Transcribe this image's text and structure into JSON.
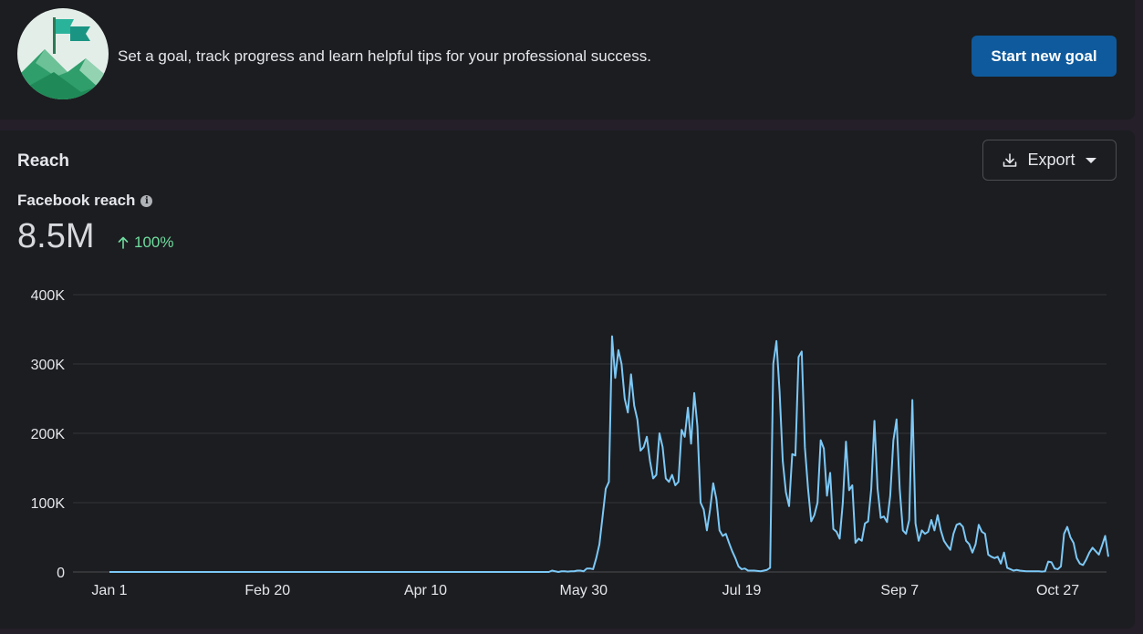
{
  "goal_banner": {
    "message": "Set a goal, track progress and learn helpful tips for your professional success.",
    "button_label": "Start new goal",
    "illustration_icon": "mountain-flag-icon"
  },
  "reach": {
    "section_title": "Reach",
    "export_label": "Export",
    "metric_label": "Facebook reach",
    "metric_value": "8.5M",
    "metric_change": "100%"
  },
  "colors": {
    "line": "#7cc8f6",
    "button_primary": "#0f5a9c",
    "positive": "#6fdc9f"
  },
  "chart_data": {
    "type": "line",
    "title": "",
    "xlabel": "",
    "ylabel": "",
    "x_tick_labels": [
      "Jan 1",
      "Feb 20",
      "Apr 10",
      "May 30",
      "Jul 19",
      "Sep 7",
      "Oct 27"
    ],
    "x_range": [
      "Jan 1",
      "Nov 13"
    ],
    "y_tick_labels": [
      "0",
      "100K",
      "200K",
      "300K",
      "400K"
    ],
    "y_ticks": [
      0,
      100000,
      200000,
      300000,
      400000
    ],
    "ylim": [
      0,
      400000
    ],
    "grid": true,
    "series": [
      {
        "values": [
          0,
          0,
          0,
          0,
          0,
          0,
          0,
          0,
          0,
          0,
          0,
          0,
          0,
          0,
          0,
          0,
          0,
          0,
          0,
          0,
          0,
          0,
          0,
          0,
          0,
          0,
          0,
          0,
          0,
          0,
          0,
          0,
          0,
          0,
          0,
          0,
          0,
          0,
          0,
          0,
          0,
          0,
          0,
          0,
          0,
          0,
          0,
          0,
          0,
          0,
          0,
          0,
          0,
          0,
          0,
          0,
          0,
          0,
          0,
          0,
          0,
          0,
          0,
          0,
          0,
          0,
          0,
          0,
          0,
          0,
          0,
          0,
          0,
          0,
          0,
          0,
          0,
          0,
          0,
          0,
          0,
          0,
          0,
          0,
          0,
          0,
          0,
          0,
          0,
          0,
          0,
          0,
          0,
          0,
          0,
          0,
          0,
          0,
          0,
          0,
          0,
          0,
          0,
          0,
          0,
          0,
          0,
          0,
          0,
          0,
          0,
          0,
          0,
          0,
          0,
          0,
          0,
          0,
          0,
          0,
          0,
          0,
          0,
          0,
          0,
          0,
          0,
          0,
          0,
          0,
          0,
          0,
          0,
          0,
          0,
          0,
          0,
          0,
          0,
          0,
          2000,
          1000,
          0,
          1000,
          1000,
          500,
          1000,
          1000,
          2000,
          2000,
          1000,
          5000,
          5000,
          4000,
          20000,
          40000,
          80000,
          120000,
          130000,
          340000,
          280000,
          320000,
          300000,
          250000,
          230000,
          285000,
          240000,
          220000,
          175000,
          180000,
          195000,
          160000,
          135000,
          140000,
          200000,
          180000,
          135000,
          130000,
          140000,
          125000,
          130000,
          205000,
          195000,
          237000,
          185000,
          258000,
          210000,
          100000,
          90000,
          60000,
          90000,
          128000,
          105000,
          60000,
          52000,
          55000,
          42000,
          30000,
          20000,
          8000,
          4000,
          5000,
          2000,
          2000,
          2000,
          1500,
          1000,
          2000,
          3000,
          6000,
          300000,
          333000,
          260000,
          160000,
          115000,
          95000,
          170000,
          168000,
          310000,
          318000,
          180000,
          120000,
          73000,
          82000,
          100000,
          190000,
          178000,
          110000,
          143000,
          62000,
          58000,
          48000,
          100000,
          188000,
          118000,
          125000,
          42000,
          48000,
          45000,
          70000,
          73000,
          120000,
          218000,
          120000,
          78000,
          80000,
          72000,
          110000,
          190000,
          220000,
          120000,
          60000,
          55000,
          75000,
          248000,
          70000,
          45000,
          60000,
          55000,
          58000,
          75000,
          60000,
          82000,
          60000,
          45000,
          38000,
          32000,
          55000,
          68000,
          70000,
          65000,
          45000,
          40000,
          28000,
          40000,
          68000,
          58000,
          55000,
          25000,
          22000,
          20000,
          22000,
          12000,
          28000,
          6000,
          4000,
          2000,
          3000,
          2000,
          1500,
          1000,
          1000,
          1000,
          1000,
          1000,
          500,
          1000,
          15000,
          14000,
          5000,
          4000,
          8000,
          55000,
          65000,
          50000,
          42000,
          20000,
          12000,
          10000,
          18000,
          28000,
          35000,
          30000,
          25000,
          38000,
          52000,
          22000
        ]
      }
    ]
  }
}
